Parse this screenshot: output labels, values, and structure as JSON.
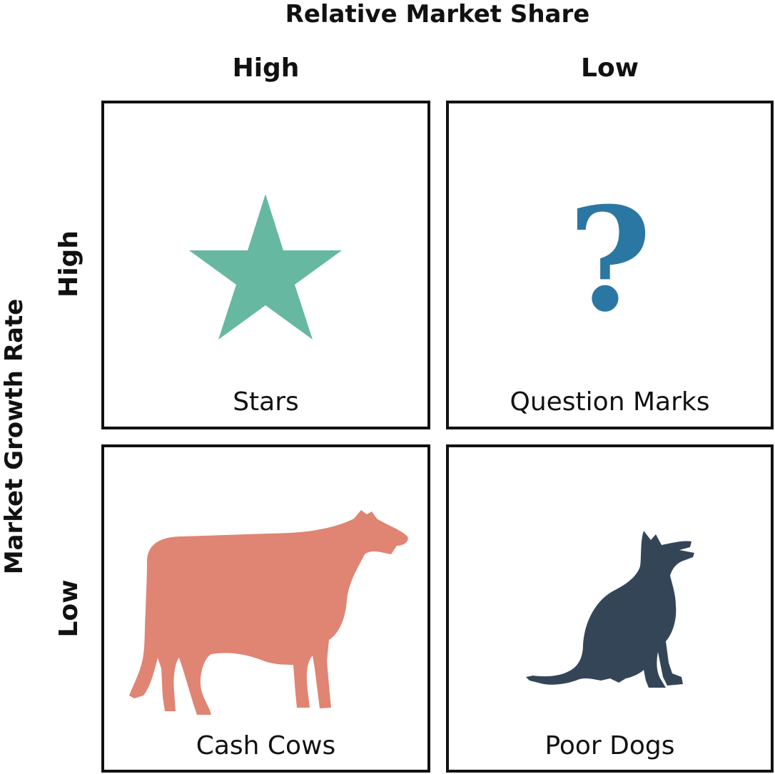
{
  "header": {
    "title": "Relative Market Share"
  },
  "columns": {
    "high": "High",
    "low": "Low"
  },
  "side": {
    "title": "Market Growth Rate"
  },
  "rows": {
    "high": "High",
    "low": "Low"
  },
  "quadrants": {
    "stars": {
      "label": "Stars",
      "icon": "star-icon",
      "color": "#66b8a0"
    },
    "question_marks": {
      "label": "Question Marks",
      "icon": "question-mark-icon",
      "glyph": "?",
      "color": "#2b77a3"
    },
    "cash_cows": {
      "label": "Cash Cows",
      "icon": "cow-icon",
      "color": "#e08473"
    },
    "poor_dogs": {
      "label": "Poor Dogs",
      "icon": "dog-icon",
      "color": "#354558"
    }
  }
}
